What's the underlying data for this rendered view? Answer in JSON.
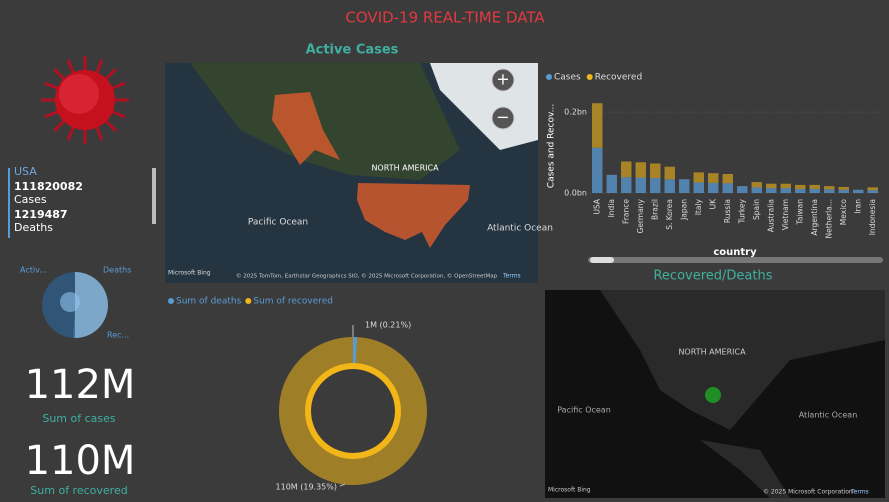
{
  "title": "COVID-19 REAL-TIME DATA",
  "country_card": {
    "country": "USA",
    "cases": "111820082",
    "cases_label": "Cases",
    "deaths": "1219487",
    "deaths_label": "Deaths"
  },
  "status_pie": {
    "type": "pie",
    "categories": [
      "Activ...",
      "Deaths",
      "Rec..."
    ],
    "values": [
      50,
      1,
      49
    ],
    "colors": [
      "#8fc3ee",
      "#3f7fb8",
      "#2f5d86"
    ]
  },
  "kpis": [
    {
      "value": "112M",
      "label": "Sum of cases"
    },
    {
      "value": "110M",
      "label": "Sum of recovered"
    }
  ],
  "active_map": {
    "title": "Active Cases",
    "region": "NORTH AMERICA",
    "oceans": [
      "Pacific Ocean",
      "Atlantic Ocean"
    ],
    "brand": "Microsoft Bing",
    "credit": "© 2025 TomTom, Earthstar Geographics SIO, © 2025 Microsoft Corporation, © OpenStreetMap",
    "terms": "Terms",
    "zoom": [
      "+",
      "−"
    ]
  },
  "bar_chart": {
    "type": "bar",
    "y_label": "Cases and Recov...",
    "x_label": "country",
    "categories": [
      "USA",
      "India",
      "France",
      "Germany",
      "Brazil",
      "S. Korea",
      "Japan",
      "Italy",
      "UK",
      "Russia",
      "Turkey",
      "Spain",
      "Australia",
      "Vietnam",
      "Taiwan",
      "Argentina",
      "Netherla...",
      "Mexico",
      "Iran",
      "Indonesia"
    ],
    "series": [
      {
        "name": "Cases",
        "color": "#5b9bd5",
        "values": [
          0.112,
          0.045,
          0.039,
          0.038,
          0.037,
          0.034,
          0.034,
          0.026,
          0.025,
          0.024,
          0.017,
          0.014,
          0.012,
          0.012,
          0.01,
          0.01,
          0.009,
          0.008,
          0.008,
          0.007
        ]
      },
      {
        "name": "Recovered",
        "color": "#f2b619",
        "values": [
          0.11,
          0,
          0.039,
          0.038,
          0.036,
          0.031,
          0,
          0.025,
          0.024,
          0.023,
          0,
          0.013,
          0.011,
          0.011,
          0.01,
          0.01,
          0.008,
          0.007,
          0,
          0.007
        ]
      }
    ],
    "ylim": [
      0,
      0.23
    ],
    "yticks": [
      {
        "value": 0,
        "label": "0.0bn"
      },
      {
        "value": 0.2,
        "label": "0.2bn"
      }
    ]
  },
  "donut": {
    "type": "donut",
    "categories": [
      "Sum of deaths",
      "Sum of recovered"
    ],
    "values": [
      1,
      110
    ],
    "value_labels": [
      "1M (0.21%)",
      "110M (19.35%)"
    ],
    "colors": [
      "#5b9bd5",
      "#f2b619"
    ]
  },
  "recovered_map": {
    "title": "Recovered/Deaths",
    "region": "NORTH AMERICA",
    "oceans": [
      "Pacific Ocean",
      "Atlantic Ocean"
    ],
    "brand": "Microsoft Bing",
    "credit": "© 2025 Microsoft Corporation",
    "terms": "Terms"
  }
}
